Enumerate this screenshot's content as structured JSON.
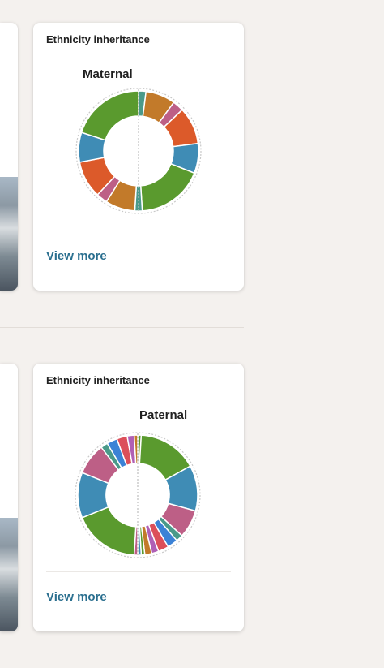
{
  "cards": [
    {
      "title": "Ethnicity inheritance",
      "chart_label": "Maternal",
      "view_more": "View more"
    },
    {
      "title": "Ethnicity inheritance",
      "chart_label": "Paternal",
      "view_more": "View more"
    }
  ],
  "chart_data": [
    {
      "type": "pie",
      "title": "Maternal",
      "values": [
        2,
        8,
        3,
        10,
        8,
        18,
        2,
        8,
        3,
        10,
        8,
        20
      ],
      "colors": [
        "#4a9a8a",
        "#c27a2a",
        "#bd5f86",
        "#dc5a2a",
        "#3f8cb5",
        "#5a9a2e",
        "#4a9a8a",
        "#c27a2a",
        "#bd5f86",
        "#dc5a2a",
        "#3f8cb5",
        "#5a9a2e"
      ]
    },
    {
      "type": "pie",
      "title": "Paternal",
      "values": [
        1,
        17,
        13,
        8,
        2,
        3,
        3,
        2,
        2,
        1,
        1,
        1,
        19,
        13,
        9,
        2,
        3,
        3,
        2,
        1
      ],
      "colors": [
        "#5a9a2e",
        "#5a9a2e",
        "#3f8cb5",
        "#bd5f86",
        "#4a9a8a",
        "#3b82d6",
        "#dc4f5a",
        "#b05fb5",
        "#c27a2a",
        "#5a9a2e",
        "#3f8cb5",
        "#bd5f86",
        "#5a9a2e",
        "#3f8cb5",
        "#bd5f86",
        "#4a9a8a",
        "#3b82d6",
        "#dc4f5a",
        "#b05fb5",
        "#c27a2a"
      ]
    }
  ]
}
